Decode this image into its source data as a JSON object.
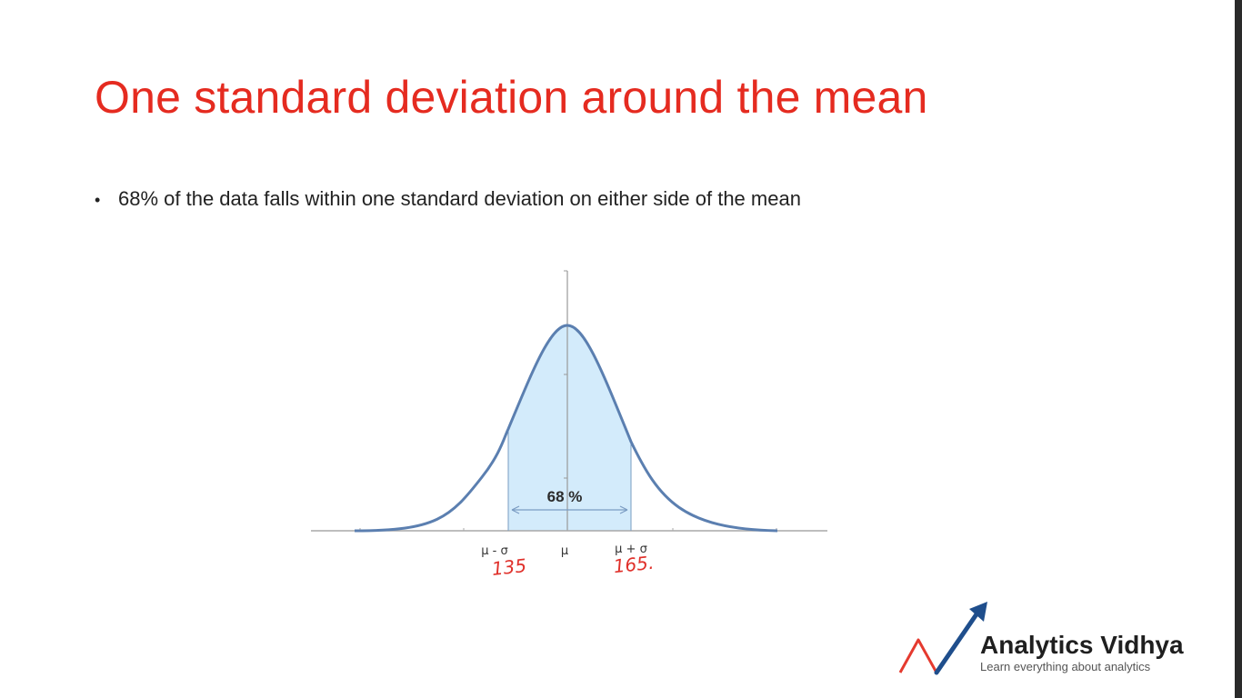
{
  "slide": {
    "title": "One standard deviation around the mean",
    "bullets": [
      "68% of the data falls within one standard deviation on either side of the mean"
    ]
  },
  "diagram": {
    "shaded_label": "68 %",
    "tick_labels": {
      "left": "μ - σ",
      "center": "μ",
      "right": "μ + σ"
    },
    "handwritten": {
      "left": "135",
      "right": "165."
    },
    "colors": {
      "curve": "#5b7fb0",
      "fill": "#d3ebfb",
      "annotation": "#e0302a"
    }
  },
  "logo": {
    "name": "Analytics Vidhya",
    "tagline": "Learn everything about analytics",
    "colors": {
      "accent_red": "#e53a2f",
      "accent_blue": "#1f4e8c"
    }
  },
  "colors": {
    "title": "#e52b20",
    "text": "#222222"
  }
}
